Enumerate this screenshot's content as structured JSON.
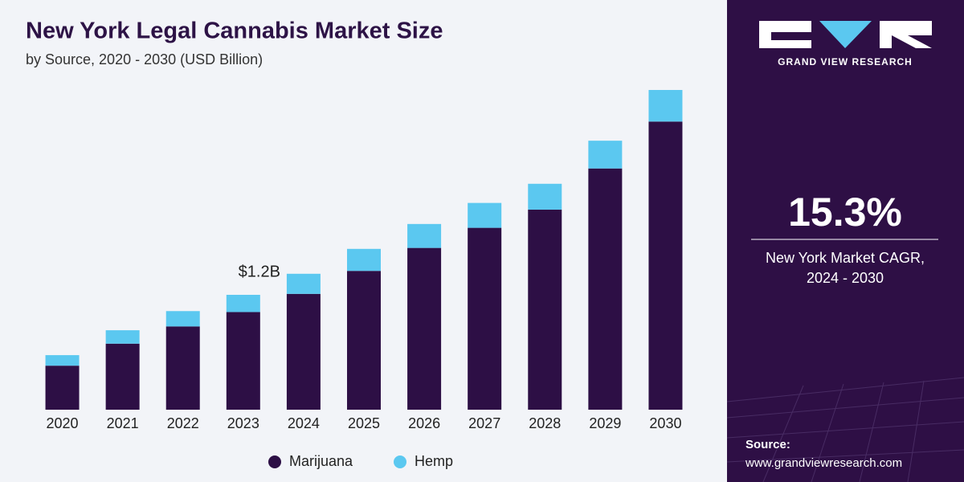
{
  "chart_data": {
    "type": "stacked_bar",
    "title": "New York Legal Cannabis Market Size",
    "subtitle": "by Source, 2020 - 2030 (USD Billion)",
    "categories": [
      "2020",
      "2021",
      "2022",
      "2023",
      "2024",
      "2025",
      "2026",
      "2027",
      "2028",
      "2029",
      "2030"
    ],
    "series": [
      {
        "name": "Marijuana",
        "color": "#2d0f45",
        "values": [
          0.46,
          0.69,
          0.87,
          1.02,
          1.21,
          1.45,
          1.69,
          1.9,
          2.09,
          2.52,
          3.01
        ]
      },
      {
        "name": "Hemp",
        "color": "#5bc8f0",
        "values": [
          0.11,
          0.14,
          0.16,
          0.18,
          0.21,
          0.23,
          0.25,
          0.26,
          0.27,
          0.29,
          0.33
        ]
      }
    ],
    "annotations": [
      {
        "text": "$1.2B",
        "x": "2023"
      }
    ],
    "legend": "bottom"
  },
  "side_panel": {
    "brand": "GRAND VIEW RESEARCH",
    "cagr": "15.3%",
    "cagr_label": [
      "New York Market CAGR,",
      "2024 - 2030"
    ],
    "source_label": "Source:",
    "source_url": "www.grandviewresearch.com"
  }
}
